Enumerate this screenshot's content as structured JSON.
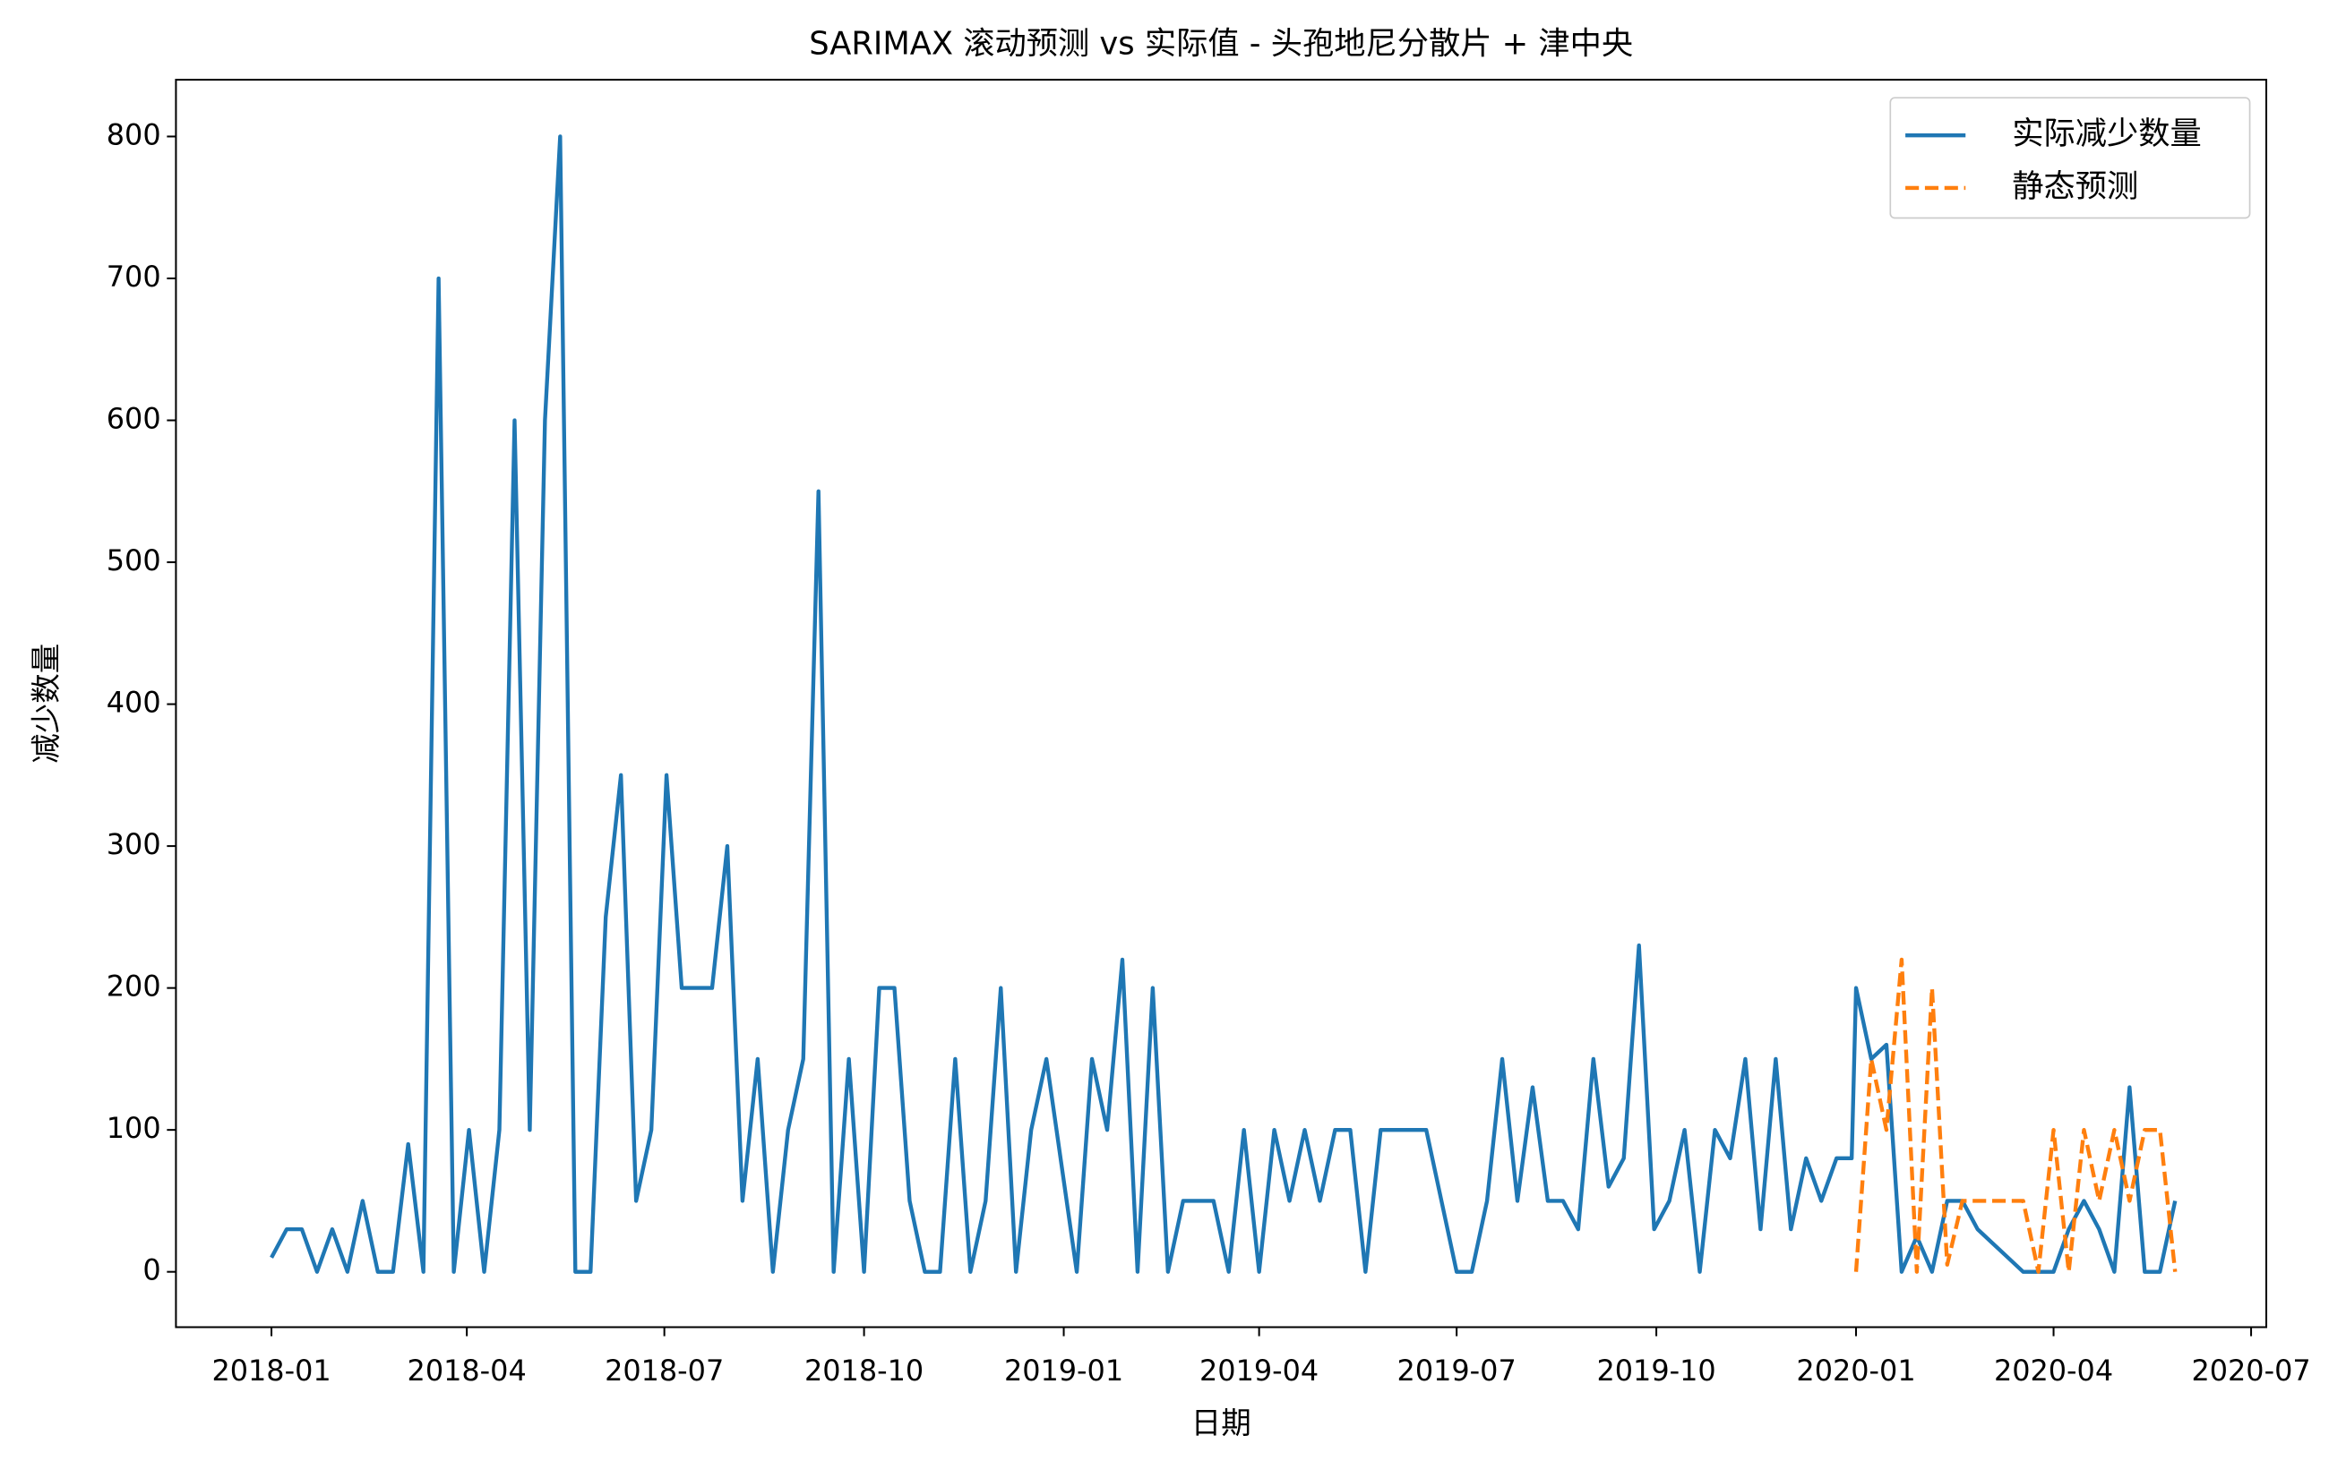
{
  "chart_data": {
    "type": "line",
    "title": "SARIMAX 滚动预测 vs 实际值 - 头孢地尼分散片 + 津中央",
    "xlabel": "日期",
    "ylabel": "减少数量",
    "x": [
      "2018-01-01",
      "2018-01-08",
      "2018-01-15",
      "2018-01-22",
      "2018-01-29",
      "2018-02-05",
      "2018-02-12",
      "2018-02-19",
      "2018-02-26",
      "2018-03-05",
      "2018-03-12",
      "2018-03-19",
      "2018-03-26",
      "2018-04-02",
      "2018-04-09",
      "2018-04-16",
      "2018-04-23",
      "2018-04-30",
      "2018-05-07",
      "2018-05-14",
      "2018-05-21",
      "2018-05-28",
      "2018-06-04",
      "2018-06-11",
      "2018-06-18",
      "2018-06-25",
      "2018-07-02",
      "2018-07-09",
      "2018-07-16",
      "2018-07-23",
      "2018-07-30",
      "2018-08-06",
      "2018-08-13",
      "2018-08-20",
      "2018-08-27",
      "2018-09-03",
      "2018-09-10",
      "2018-09-17",
      "2018-09-24",
      "2018-10-01",
      "2018-10-08",
      "2018-10-15",
      "2018-10-22",
      "2018-10-29",
      "2018-11-05",
      "2018-11-12",
      "2018-11-19",
      "2018-11-26",
      "2018-12-03",
      "2018-12-10",
      "2018-12-17",
      "2018-12-24",
      "2018-12-31",
      "2019-01-07",
      "2019-01-14",
      "2019-01-21",
      "2019-01-28",
      "2019-02-04",
      "2019-02-11",
      "2019-02-18",
      "2019-02-25",
      "2019-03-04",
      "2019-03-11",
      "2019-03-18",
      "2019-03-25",
      "2019-04-01",
      "2019-04-08",
      "2019-04-15",
      "2019-04-22",
      "2019-04-29",
      "2019-05-06",
      "2019-05-13",
      "2019-05-20",
      "2019-05-27",
      "2019-06-03",
      "2019-06-10",
      "2019-06-17",
      "2019-06-24",
      "2019-07-01",
      "2019-07-08",
      "2019-07-15",
      "2019-07-22",
      "2019-07-29",
      "2019-08-05",
      "2019-08-12",
      "2019-08-19",
      "2019-08-26",
      "2019-09-02",
      "2019-09-09",
      "2019-09-16",
      "2019-09-23",
      "2019-09-30",
      "2019-10-07",
      "2019-10-14",
      "2019-10-21",
      "2019-10-28",
      "2019-11-04",
      "2019-11-11",
      "2019-11-18",
      "2019-11-25",
      "2019-12-02",
      "2019-12-09",
      "2019-12-16",
      "2019-12-23",
      "2019-12-30",
      "2020-01-01",
      "2020-01-08",
      "2020-01-15",
      "2020-01-22",
      "2020-01-29",
      "2020-02-05",
      "2020-02-12",
      "2020-02-19",
      "2020-02-26",
      "2020-03-04",
      "2020-03-11",
      "2020-03-18",
      "2020-03-25",
      "2020-04-01",
      "2020-04-08",
      "2020-04-15",
      "2020-04-22",
      "2020-04-29",
      "2020-05-06",
      "2020-05-13",
      "2020-05-20",
      "2020-05-27"
    ],
    "series": [
      {
        "name": "实际减少数量",
        "color": "#1f77b4",
        "linestyle": "solid",
        "values": [
          10,
          30,
          30,
          0,
          30,
          0,
          50,
          0,
          0,
          90,
          0,
          700,
          0,
          100,
          0,
          100,
          600,
          100,
          600,
          800,
          0,
          0,
          250,
          350,
          50,
          100,
          350,
          200,
          200,
          200,
          300,
          50,
          150,
          0,
          100,
          150,
          550,
          0,
          150,
          0,
          200,
          200,
          50,
          0,
          0,
          150,
          0,
          50,
          200,
          0,
          100,
          150,
          75,
          0,
          150,
          100,
          220,
          0,
          200,
          0,
          50,
          50,
          50,
          0,
          100,
          0,
          100,
          50,
          100,
          50,
          100,
          100,
          0,
          100,
          100,
          100,
          100,
          50,
          0,
          0,
          50,
          150,
          50,
          130,
          50,
          50,
          30,
          150,
          60,
          80,
          230,
          30,
          50,
          100,
          0,
          100,
          80,
          150,
          30,
          150,
          30,
          80,
          50,
          80,
          80,
          200,
          150,
          160,
          0,
          25,
          0,
          50,
          50,
          30,
          20,
          10,
          0,
          0,
          0,
          30,
          50,
          30,
          0,
          130,
          0,
          0,
          50
        ]
      },
      {
        "name": "静态预测",
        "color": "#ff7f0e",
        "linestyle": "dashed",
        "values": [
          null,
          null,
          null,
          null,
          null,
          null,
          null,
          null,
          null,
          null,
          null,
          null,
          null,
          null,
          null,
          null,
          null,
          null,
          null,
          null,
          null,
          null,
          null,
          null,
          null,
          null,
          null,
          null,
          null,
          null,
          null,
          null,
          null,
          null,
          null,
          null,
          null,
          null,
          null,
          null,
          null,
          null,
          null,
          null,
          null,
          null,
          null,
          null,
          null,
          null,
          null,
          null,
          null,
          null,
          null,
          null,
          null,
          null,
          null,
          null,
          null,
          null,
          null,
          null,
          null,
          null,
          null,
          null,
          null,
          null,
          null,
          null,
          null,
          null,
          null,
          null,
          null,
          null,
          null,
          null,
          null,
          null,
          null,
          null,
          null,
          null,
          null,
          null,
          null,
          null,
          null,
          null,
          null,
          null,
          null,
          null,
          null,
          null,
          null,
          null,
          null,
          null,
          null,
          null,
          null,
          0,
          150,
          100,
          220,
          0,
          200,
          5,
          50,
          50,
          50,
          50,
          50,
          0,
          100,
          0,
          100,
          50,
          100,
          50,
          100,
          100,
          0
        ]
      }
    ],
    "xlim": [
      "2017-11-18",
      "2020-07-08"
    ],
    "xticks": [
      {
        "value": "2018-01-01",
        "label": "2018-01"
      },
      {
        "value": "2018-04-01",
        "label": "2018-04"
      },
      {
        "value": "2018-07-01",
        "label": "2018-07"
      },
      {
        "value": "2018-10-01",
        "label": "2018-10"
      },
      {
        "value": "2019-01-01",
        "label": "2019-01"
      },
      {
        "value": "2019-04-01",
        "label": "2019-04"
      },
      {
        "value": "2019-07-01",
        "label": "2019-07"
      },
      {
        "value": "2019-10-01",
        "label": "2019-10"
      },
      {
        "value": "2020-01-01",
        "label": "2020-01"
      },
      {
        "value": "2020-04-01",
        "label": "2020-04"
      },
      {
        "value": "2020-07-01",
        "label": "2020-07"
      }
    ],
    "ylim": [
      -39,
      840
    ],
    "yticks": [
      0,
      100,
      200,
      300,
      400,
      500,
      600,
      700,
      800
    ],
    "grid": false,
    "legend": "upper right"
  }
}
